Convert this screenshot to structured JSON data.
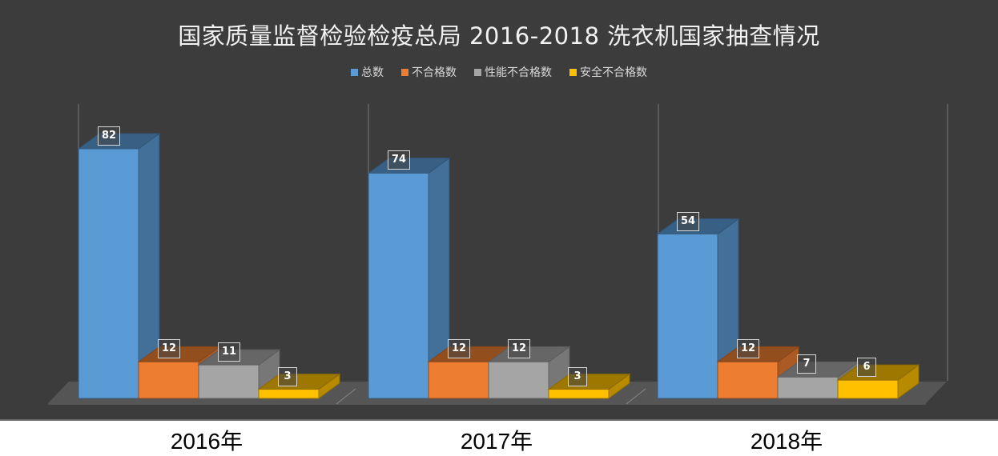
{
  "chart": {
    "title": "国家质量监督检验检疫总局 2016-2018 洗衣机国家抽查情况",
    "legend": [
      {
        "label": "总数",
        "color": "#5b9bd5"
      },
      {
        "label": "不合格数",
        "color": "#ed7d31"
      },
      {
        "label": "性能不合格数",
        "color": "#a5a5a5"
      },
      {
        "label": "安全不合格数",
        "color": "#ffc000"
      }
    ],
    "years": [
      "2016年",
      "2017年",
      "2018年"
    ]
  },
  "chart_data": {
    "type": "bar",
    "subtype": "3d-clustered-column",
    "title": "国家质量监督检验检疫总局 2016-2018 洗衣机国家抽查情况",
    "xlabel": "",
    "ylabel": "",
    "categories": [
      "2016年",
      "2017年",
      "2018年"
    ],
    "series": [
      {
        "name": "总数",
        "values": [
          82,
          74,
          54
        ],
        "color": "#5b9bd5"
      },
      {
        "name": "不合格数",
        "values": [
          12,
          12,
          12
        ],
        "color": "#ed7d31"
      },
      {
        "name": "性能不合格数",
        "values": [
          11,
          12,
          7
        ],
        "color": "#a5a5a5"
      },
      {
        "name": "安全不合格数",
        "values": [
          3,
          3,
          6
        ],
        "color": "#ffc000"
      }
    ],
    "ylim": [
      0,
      90
    ],
    "grid": false,
    "legend_position": "top",
    "data_labels": true
  }
}
